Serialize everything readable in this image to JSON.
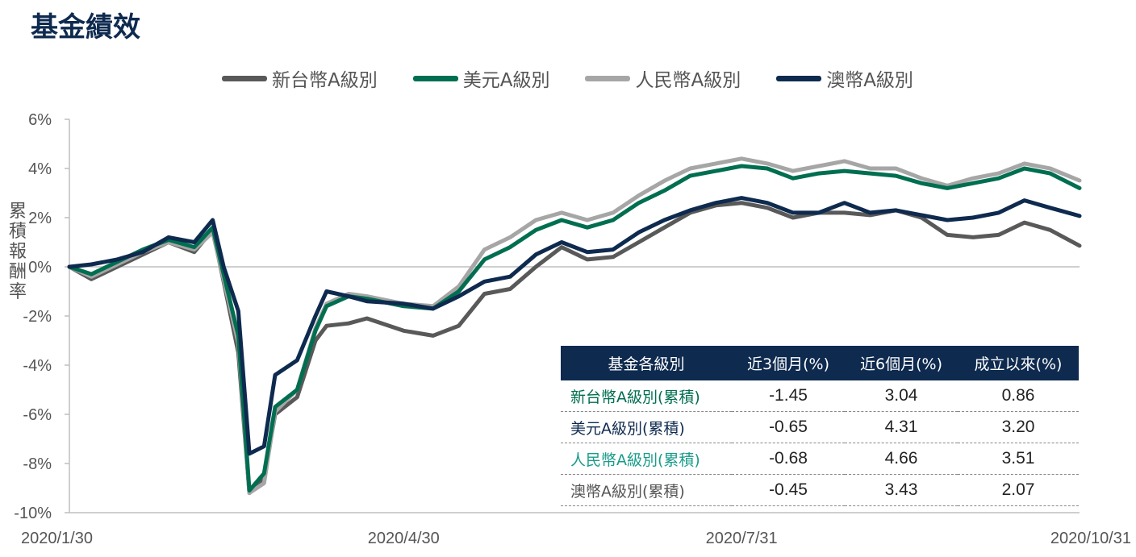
{
  "page": {
    "title": "基金績效"
  },
  "chart_data": {
    "type": "line",
    "title": "",
    "xlabel": "",
    "ylabel": "累積報酬率",
    "ylim": [
      -10,
      6
    ],
    "yticks": [
      6,
      4,
      2,
      0,
      -2,
      -4,
      -6,
      -8,
      -10
    ],
    "ytick_labels": [
      "6%",
      "4%",
      "2%",
      "0%",
      "-2%",
      "-4%",
      "-6%",
      "-8%",
      "-10%"
    ],
    "xlim": [
      "2020/1/30",
      "2020/10/31"
    ],
    "xtick_labels": [
      "2020/1/30",
      "2020/4/30",
      "2020/7/31",
      "2020/10/31"
    ],
    "grid": false,
    "legend_position": "top",
    "x": [
      "2020/1/30",
      "2020/2/5",
      "2020/2/12",
      "2020/2/19",
      "2020/2/26",
      "2020/3/4",
      "2020/3/9",
      "2020/3/12",
      "2020/3/16",
      "2020/3/19",
      "2020/3/23",
      "2020/3/26",
      "2020/4/1",
      "2020/4/6",
      "2020/4/9",
      "2020/4/15",
      "2020/4/20",
      "2020/4/30",
      "2020/5/8",
      "2020/5/15",
      "2020/5/22",
      "2020/5/29",
      "2020/6/5",
      "2020/6/12",
      "2020/6/19",
      "2020/6/26",
      "2020/7/3",
      "2020/7/10",
      "2020/7/17",
      "2020/7/24",
      "2020/7/31",
      "2020/8/7",
      "2020/8/14",
      "2020/8/21",
      "2020/8/28",
      "2020/9/4",
      "2020/9/11",
      "2020/9/18",
      "2020/9/25",
      "2020/10/2",
      "2020/10/9",
      "2020/10/16",
      "2020/10/23",
      "2020/10/31"
    ],
    "series": [
      {
        "name": "新台幣A級別",
        "color": "#595959",
        "values": [
          0.0,
          -0.5,
          0.0,
          0.5,
          1.0,
          0.6,
          1.5,
          -0.6,
          -3.5,
          -9.2,
          -8.6,
          -6.0,
          -5.3,
          -3.0,
          -2.4,
          -2.3,
          -2.1,
          -2.6,
          -2.8,
          -2.4,
          -1.1,
          -0.9,
          0.0,
          0.8,
          0.3,
          0.4,
          1.0,
          1.6,
          2.2,
          2.5,
          2.6,
          2.4,
          2.0,
          2.2,
          2.2,
          2.1,
          2.3,
          2.0,
          1.3,
          1.2,
          1.3,
          1.8,
          1.5,
          0.86
        ]
      },
      {
        "name": "美元A級別",
        "color": "#006e50",
        "values": [
          0.0,
          -0.3,
          0.2,
          0.7,
          1.1,
          0.8,
          1.6,
          -0.3,
          -2.8,
          -9.1,
          -8.4,
          -5.7,
          -5.0,
          -2.6,
          -1.6,
          -1.2,
          -1.3,
          -1.6,
          -1.7,
          -1.0,
          0.3,
          0.8,
          1.5,
          1.9,
          1.6,
          1.9,
          2.6,
          3.1,
          3.7,
          3.9,
          4.1,
          4.0,
          3.6,
          3.8,
          3.9,
          3.8,
          3.7,
          3.4,
          3.2,
          3.4,
          3.6,
          4.0,
          3.8,
          3.2
        ]
      },
      {
        "name": "人民幣A級別",
        "color": "#a6a6a6",
        "values": [
          0.0,
          -0.4,
          0.1,
          0.6,
          1.0,
          0.7,
          1.4,
          -0.5,
          -3.1,
          -9.2,
          -8.8,
          -5.9,
          -5.0,
          -2.5,
          -1.5,
          -1.1,
          -1.2,
          -1.5,
          -1.6,
          -0.8,
          0.7,
          1.2,
          1.9,
          2.2,
          1.9,
          2.2,
          2.9,
          3.5,
          4.0,
          4.2,
          4.4,
          4.2,
          3.9,
          4.1,
          4.3,
          4.0,
          4.0,
          3.6,
          3.3,
          3.6,
          3.8,
          4.2,
          4.0,
          3.51
        ]
      },
      {
        "name": "澳幣A級別",
        "color": "#0e2a4f",
        "values": [
          0.0,
          0.1,
          0.3,
          0.6,
          1.2,
          1.0,
          1.9,
          0.0,
          -1.8,
          -7.6,
          -7.3,
          -4.4,
          -3.8,
          -2.0,
          -1.0,
          -1.2,
          -1.4,
          -1.5,
          -1.7,
          -1.2,
          -0.6,
          -0.4,
          0.5,
          1.0,
          0.6,
          0.7,
          1.4,
          1.9,
          2.3,
          2.6,
          2.8,
          2.6,
          2.2,
          2.2,
          2.6,
          2.2,
          2.3,
          2.1,
          1.9,
          2.0,
          2.2,
          2.7,
          2.4,
          2.07
        ]
      }
    ]
  },
  "table": {
    "headers": [
      "基金各級別",
      "近3個月(%)",
      "近6個月(%)",
      "成立以來(%)"
    ],
    "rows": [
      {
        "name": "新台幣A級別(累積)",
        "color": "#006e50",
        "m3": "-1.45",
        "m6": "3.04",
        "since": "0.86"
      },
      {
        "name": "美元A級別(累積)",
        "color": "#0e2a4f",
        "m3": "-0.65",
        "m6": "4.31",
        "since": "3.20"
      },
      {
        "name": "人民幣A級別(累積)",
        "color": "#1a9c8a",
        "m3": "-0.68",
        "m6": "4.66",
        "since": "3.51"
      },
      {
        "name": "澳幣A級別(累積)",
        "color": "#555555",
        "m3": "-0.45",
        "m6": "3.43",
        "since": "2.07"
      }
    ]
  }
}
